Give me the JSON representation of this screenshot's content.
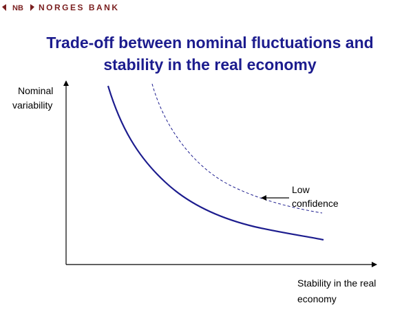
{
  "header": {
    "logo": "NB",
    "bank": "NORGES BANK"
  },
  "title": [
    "Trade-off between nominal fluctuations and",
    "stability in the real economy"
  ],
  "y_axis_label": [
    "Nominal",
    "variability"
  ],
  "x_axis_label": [
    "Stability in the real",
    "economy"
  ],
  "annotation": [
    "Low",
    "confidence"
  ]
}
